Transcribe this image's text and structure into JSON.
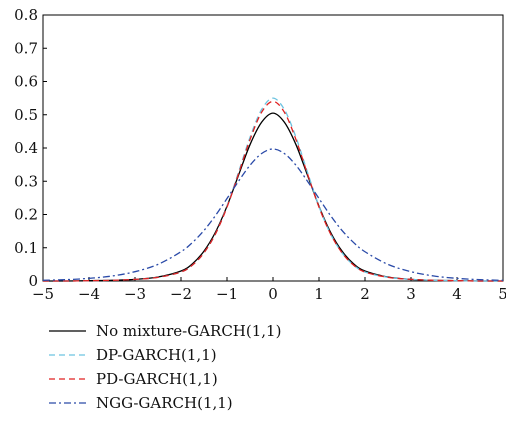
{
  "chart_data": {
    "type": "line",
    "title": "",
    "xlabel": "",
    "ylabel": "",
    "xlim": [
      -5,
      5
    ],
    "ylim": [
      0,
      0.8
    ],
    "grid": false,
    "legend_position": "below",
    "xticks": [
      -5,
      -4,
      -3,
      -2,
      -1,
      0,
      1,
      2,
      3,
      4,
      5
    ],
    "xtick_labels": [
      "−5",
      "−4",
      "−3",
      "−2",
      "−1",
      "0",
      "1",
      "2",
      "3",
      "4",
      "5"
    ],
    "yticks": [
      0,
      0.1,
      0.2,
      0.3,
      0.4,
      0.5,
      0.6,
      0.7,
      0.8
    ],
    "ytick_labels": [
      "0",
      "0.1",
      "0.2",
      "0.3",
      "0.4",
      "0.5",
      "0.6",
      "0.7",
      "0.8"
    ],
    "x": [
      -5,
      -4.5,
      -4,
      -3.5,
      -3,
      -2.5,
      -2,
      -1.75,
      -1.5,
      -1.25,
      -1,
      -0.75,
      -0.5,
      -0.25,
      0,
      0.25,
      0.5,
      0.75,
      1,
      1.25,
      1.5,
      1.75,
      2,
      2.5,
      3,
      3.5,
      4,
      4.5,
      5
    ],
    "series": [
      {
        "name": "No mixture-GARCH(1,1)",
        "color": "#000000",
        "dash": "solid",
        "values": [
          0.0,
          0.0,
          0.001,
          0.002,
          0.005,
          0.012,
          0.03,
          0.052,
          0.09,
          0.147,
          0.225,
          0.318,
          0.41,
          0.477,
          0.505,
          0.477,
          0.41,
          0.318,
          0.225,
          0.147,
          0.09,
          0.052,
          0.03,
          0.012,
          0.005,
          0.002,
          0.001,
          0.0,
          0.0
        ]
      },
      {
        "name": "DP-GARCH(1,1)",
        "color": "#6cc3e0",
        "dash": "dashed",
        "values": [
          0.0,
          0.0,
          0.001,
          0.002,
          0.005,
          0.011,
          0.027,
          0.048,
          0.085,
          0.142,
          0.224,
          0.327,
          0.432,
          0.515,
          0.55,
          0.515,
          0.432,
          0.327,
          0.224,
          0.142,
          0.085,
          0.048,
          0.027,
          0.011,
          0.005,
          0.002,
          0.001,
          0.0,
          0.0
        ]
      },
      {
        "name": "PD-GARCH(1,1)",
        "color": "#e02020",
        "dash": "dashed",
        "values": [
          0.0,
          0.0,
          0.001,
          0.002,
          0.005,
          0.011,
          0.027,
          0.048,
          0.085,
          0.142,
          0.222,
          0.322,
          0.425,
          0.507,
          0.54,
          0.507,
          0.425,
          0.322,
          0.222,
          0.142,
          0.085,
          0.048,
          0.027,
          0.011,
          0.005,
          0.002,
          0.001,
          0.0,
          0.0
        ]
      },
      {
        "name": "NGG-GARCH(1,1)",
        "color": "#2a4aa8",
        "dash": "dashdot",
        "values": [
          0.002,
          0.004,
          0.008,
          0.015,
          0.028,
          0.05,
          0.088,
          0.116,
          0.152,
          0.197,
          0.248,
          0.3,
          0.348,
          0.383,
          0.397,
          0.383,
          0.348,
          0.3,
          0.248,
          0.197,
          0.152,
          0.116,
          0.088,
          0.05,
          0.028,
          0.015,
          0.008,
          0.004,
          0.002
        ]
      }
    ]
  }
}
